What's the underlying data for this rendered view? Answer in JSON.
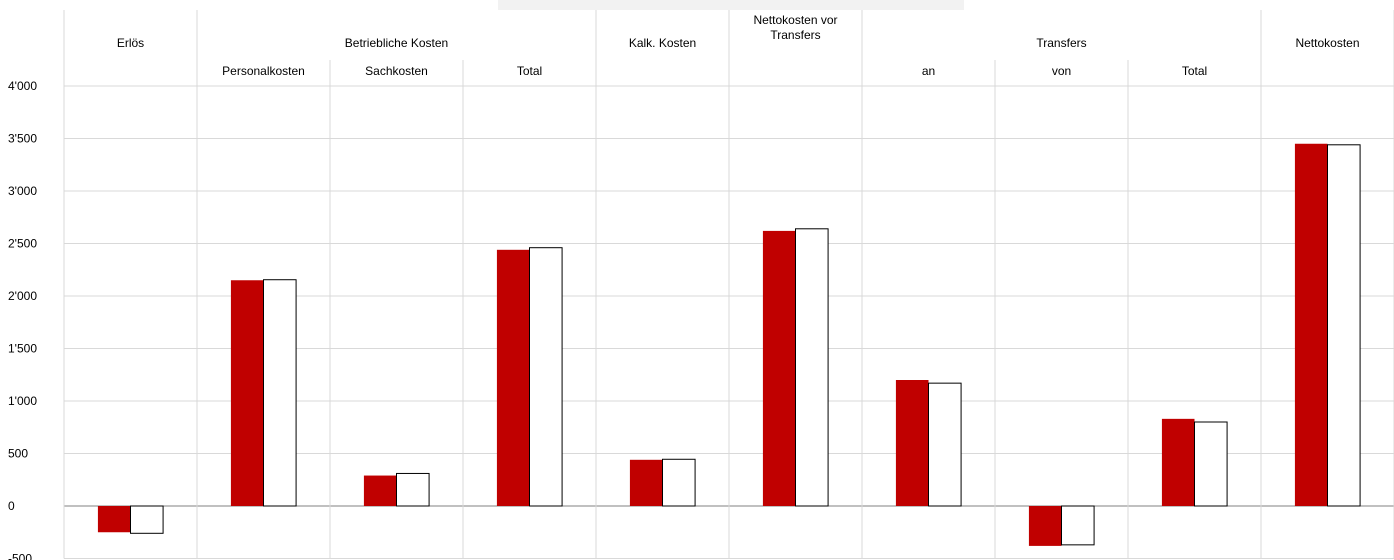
{
  "chart_data": {
    "type": "bar",
    "header_groups": [
      {
        "label": "Erlös",
        "span": [
          0,
          0
        ]
      },
      {
        "label": "Betriebliche Kosten",
        "span": [
          1,
          3
        ]
      },
      {
        "label": "Kalk. Kosten",
        "span": [
          4,
          4
        ]
      },
      {
        "label": "Nettokosten vor\nTransfers",
        "span": [
          5,
          5
        ]
      },
      {
        "label": "Transfers",
        "span": [
          6,
          8
        ]
      },
      {
        "label": "Nettokosten",
        "span": [
          9,
          9
        ]
      }
    ],
    "categories": [
      "",
      "Personalkosten",
      "Sachkosten",
      "Total",
      "",
      "",
      "an",
      "von",
      "Total",
      ""
    ],
    "series": [
      {
        "values": [
          -250,
          2150,
          290,
          2440,
          440,
          2620,
          1200,
          -380,
          830,
          3450
        ]
      },
      {
        "values": [
          -260,
          2155,
          310,
          2460,
          445,
          2640,
          1170,
          -370,
          800,
          3440
        ]
      }
    ],
    "ylim": [
      -500,
      4000
    ],
    "yticks": [
      -500,
      0,
      500,
      1000,
      1500,
      2000,
      2500,
      3000,
      3500,
      4000
    ],
    "ytick_labels": [
      "-500",
      "0",
      "500",
      "1'000",
      "1'500",
      "2'000",
      "2'500",
      "3'000",
      "3'500",
      "4'000"
    ],
    "grid": true,
    "colors": {
      "series_1_fill": "#c00000",
      "series_2_fill": "#ffffff",
      "series_2_stroke": "#000000",
      "grid": "#d9d9d9",
      "axis": "#808080",
      "top_box": "#f2f2f2"
    }
  }
}
